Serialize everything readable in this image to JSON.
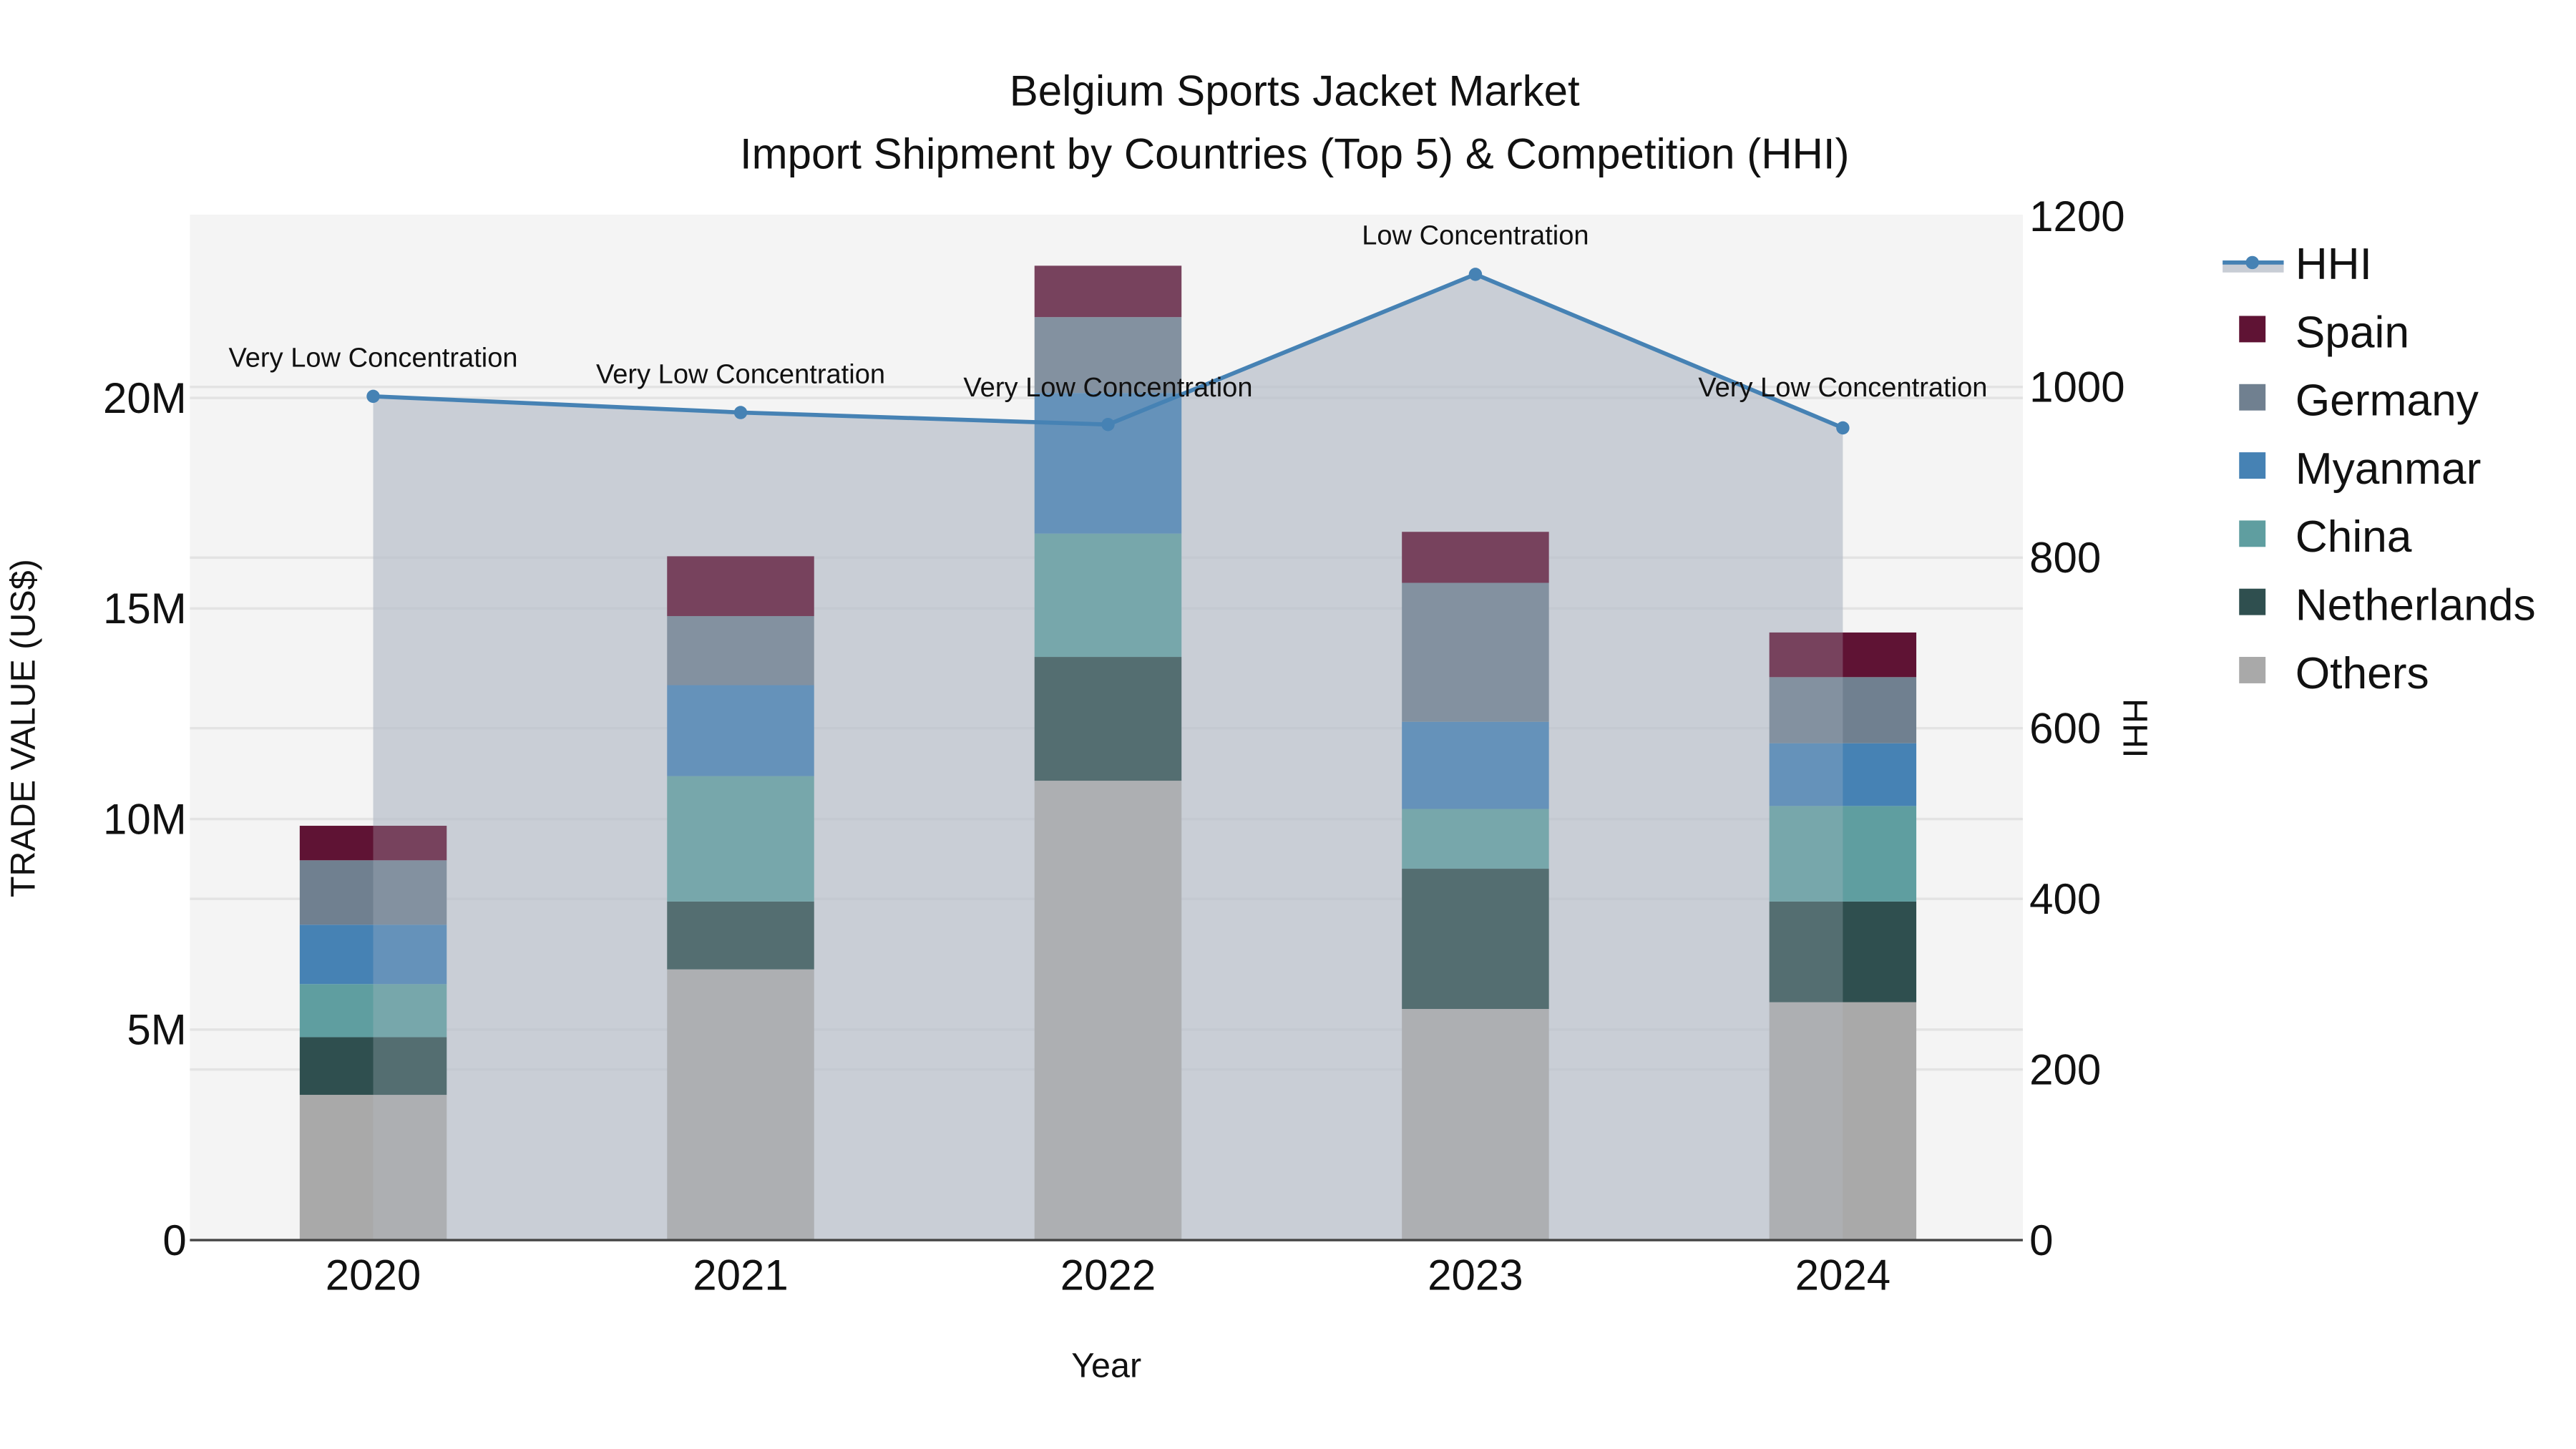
{
  "title": {
    "line1": "Belgium Sports Jacket Market",
    "line2": "Import Shipment by Countries (Top 5) & Competition (HHI)"
  },
  "axes": {
    "x_title": "Year",
    "y_left_title": "TRADE VALUE (US$)",
    "y_right_title": "HHI",
    "y_left_ticks": [
      "0",
      "5M",
      "10M",
      "15M",
      "20M"
    ],
    "y_right_ticks": [
      "0",
      "200",
      "400",
      "600",
      "800",
      "1000",
      "1200"
    ]
  },
  "legend": {
    "items": [
      {
        "label": "HHI",
        "type": "line",
        "color": "#4682b4"
      },
      {
        "label": "Spain",
        "type": "bar",
        "color": "#5f1334"
      },
      {
        "label": "Germany",
        "type": "bar",
        "color": "#708090"
      },
      {
        "label": "Myanmar",
        "type": "bar",
        "color": "#4682b4"
      },
      {
        "label": "China",
        "type": "bar",
        "color": "#5f9ea0"
      },
      {
        "label": "Netherlands",
        "type": "bar",
        "color": "#2f4f4f"
      },
      {
        "label": "Others",
        "type": "bar",
        "color": "#a9a9a9"
      }
    ]
  },
  "annotations": [
    {
      "year": "2020",
      "text": "Very Low Concentration"
    },
    {
      "year": "2021",
      "text": "Very Low Concentration"
    },
    {
      "year": "2022",
      "text": "Very Low Concentration"
    },
    {
      "year": "2023",
      "text": "Low Concentration"
    },
    {
      "year": "2024",
      "text": "Very Low Concentration"
    }
  ],
  "colors": {
    "plot_bg": "#f4f4f4",
    "hhi_fill": "#c8cdd5",
    "hhi_line": "#4682b4",
    "Spain": "#5f1334",
    "Germany": "#708090",
    "Myanmar": "#4682b4",
    "China": "#5f9ea0",
    "Netherlands": "#2f4f4f",
    "Others": "#a9a9a9"
  },
  "chart_data": {
    "type": "bar",
    "stacked": true,
    "title": "Belgium Sports Jacket Market — Import Shipment by Countries (Top 5) & Competition (HHI)",
    "xlabel": "Year",
    "ylabel": "TRADE VALUE (US$)",
    "y2label": "HHI",
    "categories": [
      "2020",
      "2021",
      "2022",
      "2023",
      "2024"
    ],
    "ylim": [
      0,
      24300000
    ],
    "y2lim": [
      0,
      1200
    ],
    "series": [
      {
        "name": "Others",
        "values": [
          3450000,
          6430000,
          10910000,
          5490000,
          5650000
        ]
      },
      {
        "name": "Netherlands",
        "values": [
          1370000,
          1610000,
          2940000,
          3330000,
          2390000
        ]
      },
      {
        "name": "China",
        "values": [
          1260000,
          2980000,
          2930000,
          1420000,
          2270000
        ]
      },
      {
        "name": "Myanmar",
        "values": [
          1410000,
          2160000,
          3340000,
          2070000,
          1490000
        ]
      },
      {
        "name": "Germany",
        "values": [
          1530000,
          1640000,
          1800000,
          3300000,
          1570000
        ]
      },
      {
        "name": "Spain",
        "values": [
          820000,
          1420000,
          1220000,
          1210000,
          1060000
        ]
      }
    ],
    "totals": [
      9840000,
      16240000,
      23140000,
      16820000,
      14430000
    ],
    "line_series": {
      "name": "HHI",
      "axis": "right",
      "values": [
        989,
        970,
        956,
        1132,
        952
      ],
      "labels": [
        "Very Low Concentration",
        "Very Low Concentration",
        "Very Low Concentration",
        "Low Concentration",
        "Very Low Concentration"
      ]
    },
    "legend_position": "right",
    "grid": true
  }
}
